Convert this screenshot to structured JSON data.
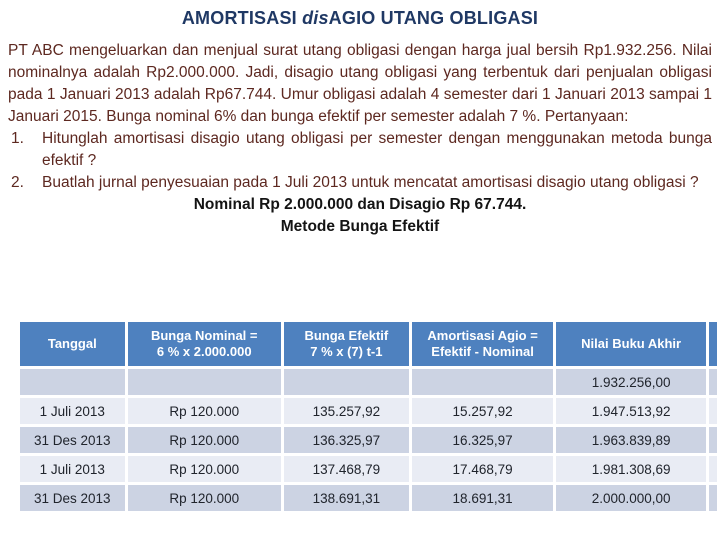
{
  "slide": {
    "title": {
      "part1": "AMORTISASI ",
      "part2_italic": "dis",
      "part3": "AGIO UTANG OBLIGASI"
    },
    "paragraph": "PT ABC mengeluarkan dan menjual surat utang obligasi dengan harga jual bersih Rp1.932.256. Nilai nominalnya adalah Rp2.000.000. Jadi, disagio utang obligasi yang terbentuk dari penjualan obligasi pada 1 Januari 2013 adalah Rp67.744. Umur obligasi adalah 4 semester dari 1 Januari 2013 sampai 1 Januari 2015. Bunga nominal 6% dan bunga efektif per semester adalah 7 %. Pertanyaan:",
    "questions": [
      {
        "number": "1.",
        "text": "Hitunglah amortisasi disagio utang obligasi per semester dengan menggunakan metoda bunga efektif ?"
      },
      {
        "number": "2.",
        "text": "Buatlah jurnal penyesuaian pada 1 Juli 2013 untuk mencatat amortisasi disagio utang obligasi ?"
      }
    ],
    "subtitle_line1": "Nominal Rp 2.000.000 dan Disagio Rp 67.744.",
    "subtitle_line2": "Metode Bunga Efektif"
  },
  "table": {
    "headers": [
      {
        "line1": "Tanggal",
        "line2": ""
      },
      {
        "line1": "Bunga Nominal =",
        "line2": "6 % x 2.000.000"
      },
      {
        "line1": "Bunga Efektif",
        "line2": "7 % x (7) t-1"
      },
      {
        "line1": "Amortisasi Agio =",
        "line2": "Efektif - Nominal"
      },
      {
        "line1": "Nilai Buku Akhir",
        "line2": ""
      }
    ],
    "rows": [
      {
        "cells": [
          "",
          "",
          "",
          "",
          "1.932.256,00"
        ]
      },
      {
        "cells": [
          "1 Juli 2013",
          "Rp 120.000",
          "135.257,92",
          "15.257,92",
          "1.947.513,92"
        ]
      },
      {
        "cells": [
          "31 Des 2013",
          "Rp 120.000",
          "136.325,97",
          "16.325,97",
          "1.963.839,89"
        ]
      },
      {
        "cells": [
          "1 Juli 2013",
          "Rp 120.000",
          "137.468,79",
          "17.468,79",
          "1.981.308,69"
        ]
      },
      {
        "cells": [
          "31 Des 2013",
          "Rp 120.000",
          "138.691,31",
          "18.691,31",
          "2.000.000,00"
        ]
      }
    ]
  },
  "colors": {
    "title_text": "#1f3864",
    "body_text": "#5d2820",
    "subtitle_text": "#141414",
    "table_header_bg": "#4e81bf",
    "table_header_text": "#ffffff",
    "row_band_dark": "#ccd3e3",
    "row_band_light": "#e9ecf4",
    "table_cell_text": "#20242c",
    "background": "#ffffff"
  }
}
